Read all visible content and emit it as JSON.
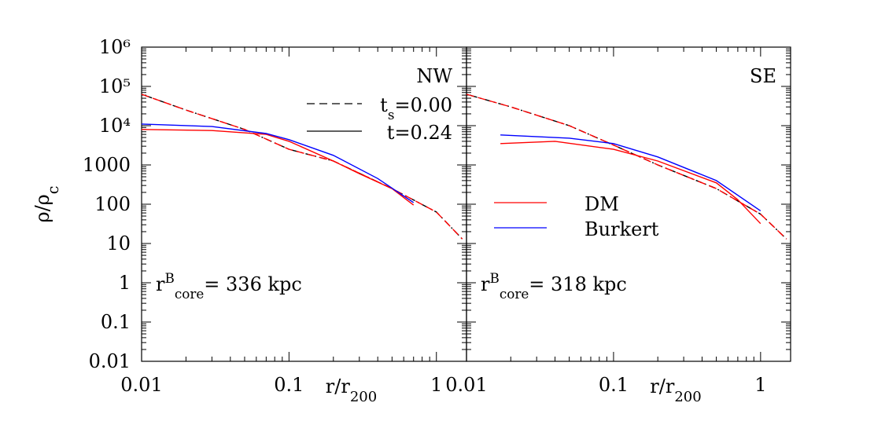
{
  "chart_data": [
    {
      "type": "line",
      "xscale": "log",
      "yscale": "log",
      "xlim": [
        0.01,
        1.6
      ],
      "ylim": [
        0.01,
        1000000
      ],
      "xticks": [
        0.01,
        0.1,
        1
      ],
      "yticks": [
        0.01,
        0.1,
        1,
        10,
        100,
        1000,
        {
          "value": 10000,
          "label": "10⁴"
        },
        {
          "value": 100000,
          "label": "10⁵"
        },
        {
          "value": 1000000,
          "label": "10⁶"
        }
      ],
      "ylabel": "ρ/ρ",
      "ylabel_sub": "c",
      "xlabel": "r/r",
      "xlabel_sub": "200",
      "panel_label": "NW",
      "core": {
        "text": "r",
        "sup": "B",
        "sub": "core",
        "rest": "= 336 kpc"
      },
      "line_legend": [
        {
          "label": "t",
          "sub": "s",
          "rest": "=0.00",
          "dash": true
        },
        {
          "label": "t=0.24",
          "dash": false
        }
      ],
      "series": [
        {
          "color": "#000000",
          "dash": true,
          "x": [
            0.01,
            0.02,
            0.05,
            0.1,
            0.2,
            0.5,
            1,
            1.5
          ],
          "values": [
            63000,
            25000,
            8000,
            2500,
            1260,
            250,
            63,
            13
          ]
        },
        {
          "color": "#ff0000",
          "dash": true,
          "x": [
            0.01,
            0.02,
            0.05,
            0.1,
            0.2,
            0.5,
            1,
            1.5
          ],
          "values": [
            63000,
            25000,
            8000,
            2500,
            1260,
            250,
            63,
            13
          ]
        },
        {
          "color": "#ff0000",
          "dash": false,
          "x": [
            0.01,
            0.03,
            0.07,
            0.1,
            0.2,
            0.3,
            0.5,
            0.7
          ],
          "values": [
            8000,
            7500,
            6000,
            4000,
            1260,
            600,
            250,
            95
          ]
        },
        {
          "color": "#0000ff",
          "dash": false,
          "x": [
            0.01,
            0.03,
            0.07,
            0.1,
            0.2,
            0.4,
            0.7
          ],
          "values": [
            11000,
            9500,
            6300,
            4400,
            1750,
            450,
            110
          ]
        }
      ]
    },
    {
      "type": "line",
      "xscale": "log",
      "yscale": "log",
      "xlim": [
        0.01,
        1.6
      ],
      "ylim": [
        0.01,
        1000000
      ],
      "xticks": [
        0.01,
        0.1,
        1
      ],
      "yticks": [
        0.01,
        0.1,
        1,
        10,
        100,
        1000,
        10000,
        100000,
        1000000
      ],
      "xlabel": "r/r",
      "xlabel_sub": "200",
      "panel_label": "SE",
      "core": {
        "text": "r",
        "sup": "B",
        "sub": "core",
        "rest": "= 318 kpc"
      },
      "series": [
        {
          "color": "#000000",
          "dash": true,
          "x": [
            0.01,
            0.02,
            0.05,
            0.1,
            0.2,
            0.5,
            1,
            1.5
          ],
          "values": [
            63000,
            30000,
            10000,
            3200,
            1000,
            250,
            56,
            13
          ]
        },
        {
          "color": "#ff0000",
          "dash": true,
          "x": [
            0.01,
            0.02,
            0.05,
            0.1,
            0.2,
            0.5,
            1,
            1.5
          ],
          "values": [
            63000,
            30000,
            10000,
            3200,
            1000,
            250,
            56,
            13
          ]
        },
        {
          "name": "DM",
          "color": "#ff0000",
          "dash": false,
          "x": [
            0.017,
            0.04,
            0.1,
            0.2,
            0.5,
            0.7,
            1
          ],
          "values": [
            3500,
            4000,
            2500,
            1260,
            350,
            130,
            32
          ]
        },
        {
          "name": "Burkert",
          "color": "#0000ff",
          "dash": false,
          "x": [
            0.017,
            0.05,
            0.1,
            0.2,
            0.5,
            1
          ],
          "values": [
            5800,
            4800,
            3500,
            1600,
            400,
            68
          ]
        }
      ]
    }
  ]
}
